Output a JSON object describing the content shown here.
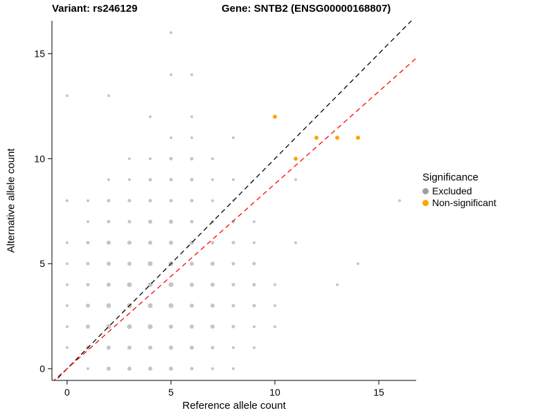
{
  "title": {
    "variant": "Variant: rs246129",
    "gene": "Gene: SNTB2 (ENSG00000168807)"
  },
  "chart_data": {
    "type": "scatter",
    "xlabel": "Reference allele count",
    "ylabel": "Alternative allele count",
    "xlim": [
      -0.73,
      16.8
    ],
    "ylim": [
      -0.56,
      16.57
    ],
    "xticks": [
      0,
      5,
      10,
      15
    ],
    "yticks": [
      0,
      5,
      10,
      15
    ],
    "grid": false,
    "series": [
      {
        "name": "Excluded",
        "color": "#9e9e9e",
        "opacity": 0.6,
        "points": [
          [
            1,
            0,
            2
          ],
          [
            2,
            0,
            3
          ],
          [
            3,
            0,
            3
          ],
          [
            4,
            0,
            3
          ],
          [
            5,
            0,
            3
          ],
          [
            6,
            0,
            2.5
          ],
          [
            7,
            0,
            2
          ],
          [
            8,
            0,
            2
          ],
          [
            0,
            1,
            2
          ],
          [
            1,
            1,
            3
          ],
          [
            2,
            1,
            3
          ],
          [
            3,
            1,
            3
          ],
          [
            4,
            1,
            3
          ],
          [
            5,
            1,
            3
          ],
          [
            6,
            1,
            3
          ],
          [
            7,
            1,
            2.5
          ],
          [
            8,
            1,
            2
          ],
          [
            9,
            1,
            2
          ],
          [
            0,
            2,
            2
          ],
          [
            1,
            2,
            3
          ],
          [
            2,
            2,
            3.5
          ],
          [
            3,
            2,
            3.5
          ],
          [
            4,
            2,
            3.5
          ],
          [
            5,
            2,
            3
          ],
          [
            6,
            2,
            3
          ],
          [
            7,
            2,
            3
          ],
          [
            8,
            2,
            2.5
          ],
          [
            9,
            2,
            2
          ],
          [
            10,
            2,
            2
          ],
          [
            0,
            3,
            2
          ],
          [
            1,
            3,
            3
          ],
          [
            2,
            3,
            3.5
          ],
          [
            3,
            3,
            3.5
          ],
          [
            4,
            3,
            3.5
          ],
          [
            5,
            3,
            3.5
          ],
          [
            6,
            3,
            3
          ],
          [
            7,
            3,
            3
          ],
          [
            8,
            3,
            2.5
          ],
          [
            9,
            3,
            2.5
          ],
          [
            10,
            3,
            2
          ],
          [
            0,
            4,
            2
          ],
          [
            1,
            4,
            2.5
          ],
          [
            2,
            4,
            3
          ],
          [
            3,
            4,
            3.5
          ],
          [
            4,
            4,
            3.5
          ],
          [
            5,
            4,
            3.5
          ],
          [
            6,
            4,
            3
          ],
          [
            7,
            4,
            3
          ],
          [
            8,
            4,
            2.5
          ],
          [
            9,
            4,
            2.5
          ],
          [
            10,
            4,
            2
          ],
          [
            13,
            4,
            2
          ],
          [
            0,
            5,
            2
          ],
          [
            1,
            5,
            2.5
          ],
          [
            2,
            5,
            3
          ],
          [
            3,
            5,
            3
          ],
          [
            4,
            5,
            3.5
          ],
          [
            5,
            5,
            3.5
          ],
          [
            6,
            5,
            3
          ],
          [
            7,
            5,
            3
          ],
          [
            8,
            5,
            2.5
          ],
          [
            9,
            5,
            2.5
          ],
          [
            14,
            5,
            2
          ],
          [
            0,
            6,
            2
          ],
          [
            1,
            6,
            2.5
          ],
          [
            2,
            6,
            3
          ],
          [
            3,
            6,
            3
          ],
          [
            4,
            6,
            3
          ],
          [
            5,
            6,
            3
          ],
          [
            6,
            6,
            3
          ],
          [
            7,
            6,
            2.5
          ],
          [
            8,
            6,
            2.5
          ],
          [
            9,
            6,
            2
          ],
          [
            11,
            6,
            2
          ],
          [
            1,
            7,
            2
          ],
          [
            2,
            7,
            2.5
          ],
          [
            3,
            7,
            2.5
          ],
          [
            4,
            7,
            3
          ],
          [
            5,
            7,
            3
          ],
          [
            6,
            7,
            2.5
          ],
          [
            7,
            7,
            2.5
          ],
          [
            8,
            7,
            2.5
          ],
          [
            9,
            7,
            2
          ],
          [
            0,
            8,
            2
          ],
          [
            1,
            8,
            2
          ],
          [
            2,
            8,
            2.5
          ],
          [
            3,
            8,
            2.5
          ],
          [
            4,
            8,
            2.5
          ],
          [
            5,
            8,
            2.5
          ],
          [
            6,
            8,
            2.5
          ],
          [
            7,
            8,
            2
          ],
          [
            8,
            8,
            2
          ],
          [
            16,
            8,
            2
          ],
          [
            2,
            9,
            2
          ],
          [
            3,
            9,
            2
          ],
          [
            4,
            9,
            2.5
          ],
          [
            5,
            9,
            2.5
          ],
          [
            6,
            9,
            2.5
          ],
          [
            7,
            9,
            2
          ],
          [
            8,
            9,
            2
          ],
          [
            11,
            9,
            2
          ],
          [
            3,
            10,
            2
          ],
          [
            4,
            10,
            2
          ],
          [
            5,
            10,
            2.5
          ],
          [
            6,
            10,
            2.5
          ],
          [
            7,
            10,
            2
          ],
          [
            5,
            11,
            2
          ],
          [
            6,
            11,
            2
          ],
          [
            8,
            11,
            2
          ],
          [
            4,
            12,
            2
          ],
          [
            6,
            12,
            2
          ],
          [
            0,
            13,
            2
          ],
          [
            2,
            13,
            2
          ],
          [
            5,
            14,
            2
          ],
          [
            6,
            14,
            2
          ],
          [
            5,
            16,
            2
          ]
        ]
      },
      {
        "name": "Non-significant",
        "color": "#FFA500",
        "opacity": 1,
        "points": [
          [
            10,
            12,
            3
          ],
          [
            11,
            10,
            3
          ],
          [
            12,
            11,
            3
          ],
          [
            13,
            11,
            3
          ],
          [
            14,
            11,
            3
          ]
        ]
      }
    ],
    "lines": [
      {
        "name": "identity-line",
        "color": "#000000",
        "dash": "7,5",
        "slope": 1,
        "intercept": 0
      },
      {
        "name": "expected-ratio-line",
        "color": "#FF0000",
        "dash": "7,5",
        "slope": 0.88,
        "intercept": 0
      }
    ],
    "legend": {
      "title": "Significance",
      "position": "right",
      "entries": [
        {
          "label": "Excluded",
          "color": "#9e9e9e"
        },
        {
          "label": "Non-significant",
          "color": "#FFA500"
        }
      ]
    }
  }
}
